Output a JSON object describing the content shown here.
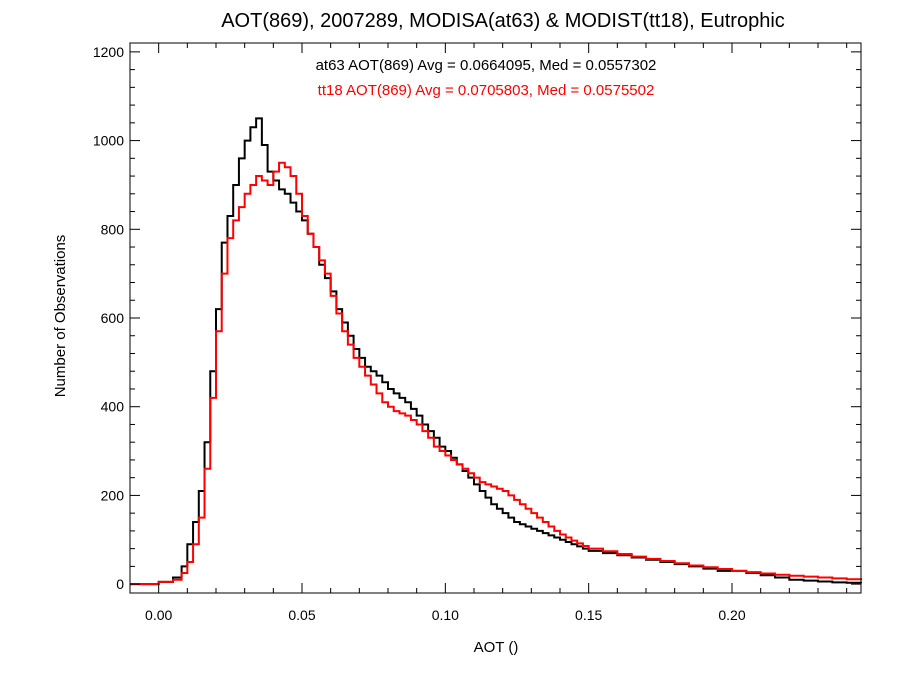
{
  "chart_data": {
    "type": "line",
    "title": "AOT(869), 2007289, MODISA(at63) & MODIST(tt18), Eutrophic",
    "xlabel": "AOT ()",
    "ylabel": "Number of Observations",
    "xlim": [
      -0.01,
      0.245
    ],
    "ylim": [
      -20,
      1220
    ],
    "x_ticks": [
      0.0,
      0.05,
      0.1,
      0.15,
      0.2
    ],
    "x_tick_labels": [
      "0.00",
      "0.05",
      "0.10",
      "0.15",
      "0.20"
    ],
    "y_ticks": [
      0,
      200,
      400,
      600,
      800,
      1000,
      1200
    ],
    "y_tick_labels": [
      "0",
      "200",
      "400",
      "600",
      "800",
      "1000",
      "1200"
    ],
    "grid": false,
    "annotations": [
      {
        "text": "at63 AOT(869) Avg = 0.0664095, Med = 0.0557302",
        "color": "#000000"
      },
      {
        "text": "tt18 AOT(869) Avg = 0.0705803, Med = 0.0575502",
        "color": "#ff0000"
      }
    ],
    "series": [
      {
        "color": "#000000",
        "x": [
          -0.01,
          0.0,
          0.005,
          0.008,
          0.01,
          0.012,
          0.014,
          0.016,
          0.018,
          0.02,
          0.022,
          0.024,
          0.026,
          0.028,
          0.03,
          0.032,
          0.034,
          0.036,
          0.038,
          0.04,
          0.042,
          0.044,
          0.046,
          0.048,
          0.05,
          0.052,
          0.054,
          0.056,
          0.058,
          0.06,
          0.062,
          0.064,
          0.066,
          0.068,
          0.07,
          0.072,
          0.074,
          0.076,
          0.078,
          0.08,
          0.082,
          0.084,
          0.086,
          0.088,
          0.09,
          0.092,
          0.094,
          0.096,
          0.098,
          0.1,
          0.102,
          0.104,
          0.106,
          0.108,
          0.11,
          0.112,
          0.114,
          0.116,
          0.118,
          0.12,
          0.122,
          0.124,
          0.126,
          0.128,
          0.13,
          0.132,
          0.134,
          0.136,
          0.138,
          0.14,
          0.142,
          0.144,
          0.146,
          0.148,
          0.15,
          0.155,
          0.16,
          0.165,
          0.17,
          0.175,
          0.18,
          0.185,
          0.19,
          0.195,
          0.2,
          0.205,
          0.21,
          0.215,
          0.22,
          0.225,
          0.23,
          0.235,
          0.24,
          0.245
        ],
        "y": [
          0,
          5,
          15,
          40,
          90,
          140,
          210,
          320,
          480,
          620,
          770,
          830,
          900,
          960,
          1000,
          1030,
          1050,
          990,
          930,
          910,
          890,
          880,
          860,
          840,
          820,
          790,
          760,
          720,
          690,
          660,
          620,
          590,
          560,
          530,
          510,
          490,
          480,
          470,
          455,
          440,
          430,
          420,
          410,
          395,
          380,
          360,
          345,
          330,
          310,
          300,
          285,
          270,
          255,
          240,
          225,
          210,
          195,
          180,
          170,
          160,
          150,
          140,
          135,
          130,
          125,
          120,
          115,
          110,
          105,
          100,
          95,
          90,
          85,
          80,
          75,
          70,
          65,
          60,
          55,
          50,
          45,
          40,
          35,
          30,
          30,
          25,
          20,
          15,
          10,
          8,
          6,
          4,
          3,
          2
        ]
      },
      {
        "color": "#ff0000",
        "x": [
          -0.01,
          0.0,
          0.005,
          0.008,
          0.01,
          0.012,
          0.014,
          0.016,
          0.018,
          0.02,
          0.022,
          0.024,
          0.026,
          0.028,
          0.03,
          0.032,
          0.034,
          0.036,
          0.038,
          0.04,
          0.042,
          0.044,
          0.046,
          0.048,
          0.05,
          0.052,
          0.054,
          0.056,
          0.058,
          0.06,
          0.062,
          0.064,
          0.066,
          0.068,
          0.07,
          0.072,
          0.074,
          0.076,
          0.078,
          0.08,
          0.082,
          0.084,
          0.086,
          0.088,
          0.09,
          0.092,
          0.094,
          0.096,
          0.098,
          0.1,
          0.102,
          0.104,
          0.106,
          0.108,
          0.11,
          0.112,
          0.114,
          0.116,
          0.118,
          0.12,
          0.122,
          0.124,
          0.126,
          0.128,
          0.13,
          0.132,
          0.134,
          0.136,
          0.138,
          0.14,
          0.142,
          0.144,
          0.146,
          0.148,
          0.15,
          0.155,
          0.16,
          0.165,
          0.17,
          0.175,
          0.18,
          0.185,
          0.19,
          0.195,
          0.2,
          0.205,
          0.21,
          0.215,
          0.22,
          0.225,
          0.23,
          0.235,
          0.24,
          0.245
        ],
        "y": [
          0,
          5,
          10,
          25,
          50,
          90,
          150,
          260,
          420,
          570,
          700,
          780,
          820,
          850,
          880,
          900,
          920,
          910,
          900,
          930,
          950,
          940,
          920,
          880,
          830,
          790,
          760,
          730,
          700,
          650,
          610,
          570,
          540,
          510,
          490,
          470,
          450,
          430,
          410,
          400,
          390,
          385,
          380,
          370,
          360,
          345,
          330,
          310,
          300,
          290,
          280,
          270,
          260,
          250,
          240,
          230,
          225,
          220,
          215,
          210,
          200,
          190,
          180,
          170,
          160,
          150,
          140,
          130,
          120,
          112,
          105,
          98,
          92,
          86,
          80,
          74,
          68,
          62,
          57,
          52,
          47,
          42,
          38,
          34,
          30,
          27,
          24,
          21,
          19,
          17,
          15,
          13,
          11,
          9
        ]
      }
    ]
  }
}
